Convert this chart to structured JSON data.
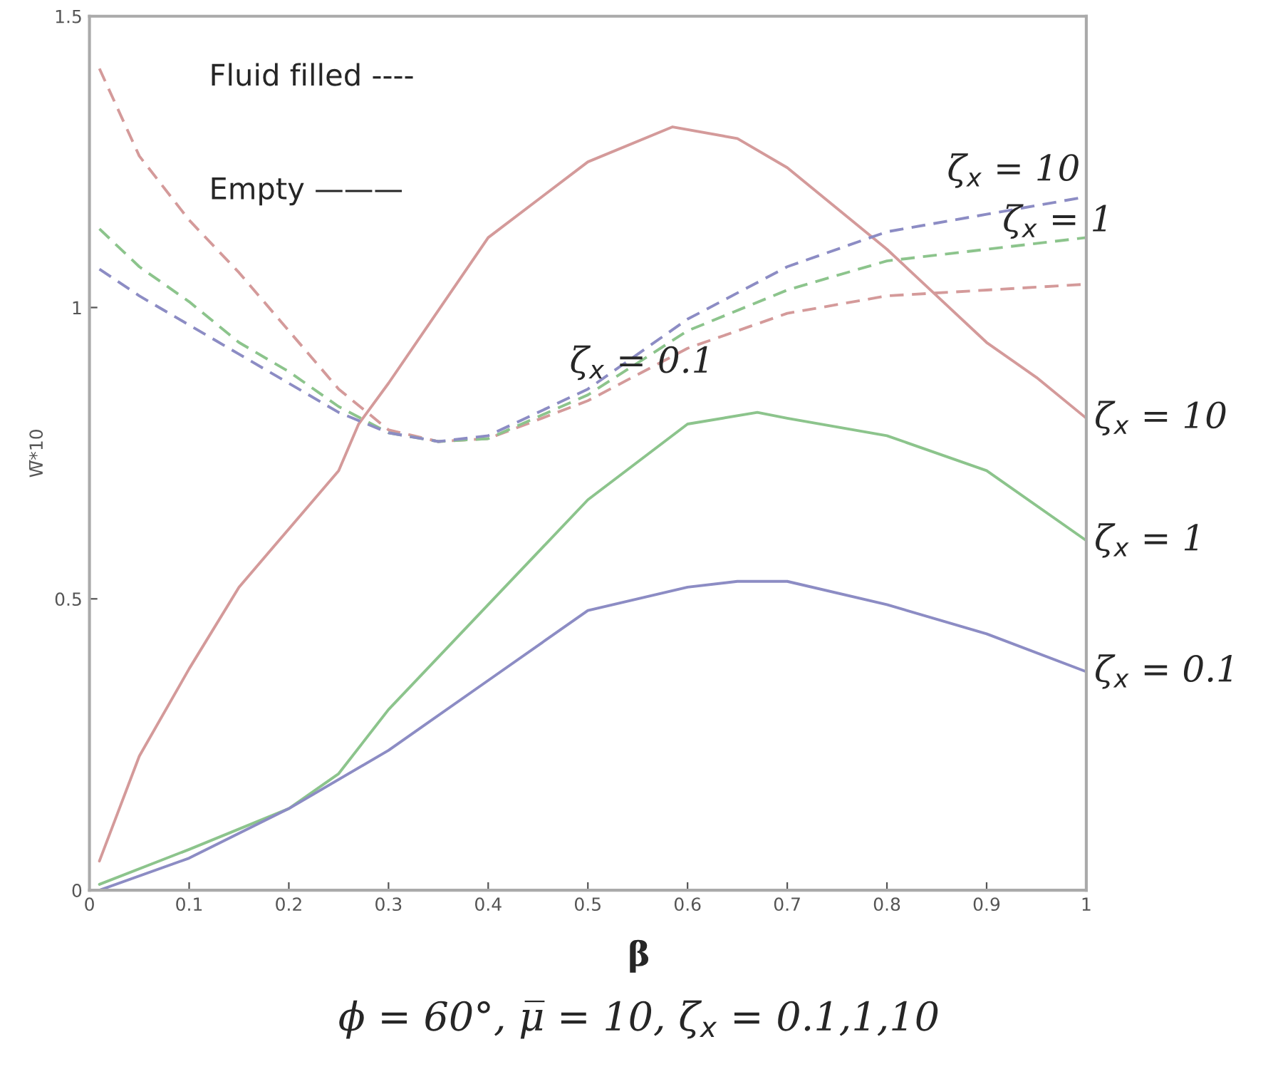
{
  "chart_data": {
    "type": "line",
    "xlabel": "β",
    "ylabel": "W̅*10",
    "x": [
      0.01,
      0.05,
      0.1,
      0.15,
      0.2,
      0.25,
      0.3,
      0.35,
      0.4,
      0.5,
      0.6,
      0.7,
      0.8,
      0.9,
      1.0
    ],
    "xlim": [
      0,
      1
    ],
    "ylim": [
      0,
      1.5
    ],
    "xticks": [
      0,
      0.1,
      0.2,
      0.3,
      0.4,
      0.5,
      0.6,
      0.7,
      0.8,
      0.9,
      1
    ],
    "yticks": [
      0,
      0.5,
      1,
      1.5
    ],
    "grid": false,
    "legend": false,
    "series": [
      {
        "color": "#d49a9a",
        "line_style": "solid",
        "x": [
          0.01,
          0.05,
          0.1,
          0.15,
          0.2,
          0.25,
          0.27,
          0.3,
          0.4,
          0.5,
          0.585,
          0.65,
          0.7,
          0.75,
          0.8,
          0.85,
          0.9,
          0.95,
          1.0
        ],
        "values": [
          0.05,
          0.23,
          0.38,
          0.52,
          0.62,
          0.72,
          0.8,
          0.87,
          1.12,
          1.25,
          1.31,
          1.29,
          1.24,
          1.17,
          1.1,
          1.02,
          0.94,
          0.88,
          0.81
        ]
      },
      {
        "color": "#8cc48c",
        "line_style": "solid",
        "x": [
          0.01,
          0.1,
          0.2,
          0.25,
          0.3,
          0.4,
          0.5,
          0.6,
          0.67,
          0.7,
          0.8,
          0.9,
          1.0
        ],
        "values": [
          0.01,
          0.07,
          0.14,
          0.2,
          0.31,
          0.49,
          0.67,
          0.8,
          0.82,
          0.81,
          0.78,
          0.72,
          0.6
        ]
      },
      {
        "color": "#8c8cc4",
        "line_style": "solid",
        "x": [
          0.01,
          0.1,
          0.2,
          0.3,
          0.4,
          0.5,
          0.6,
          0.65,
          0.7,
          0.8,
          0.9,
          1.0
        ],
        "values": [
          0.0,
          0.055,
          0.14,
          0.24,
          0.36,
          0.48,
          0.52,
          0.53,
          0.53,
          0.49,
          0.44,
          0.375
        ]
      },
      {
        "color": "#d49a9a",
        "line_style": "dashed",
        "values": [
          1.41,
          1.26,
          1.15,
          1.06,
          0.96,
          0.86,
          0.79,
          0.77,
          0.775,
          0.84,
          0.93,
          0.99,
          1.02,
          1.03,
          1.04
        ]
      },
      {
        "color": "#8cc48c",
        "line_style": "dashed",
        "values": [
          1.135,
          1.07,
          1.01,
          0.94,
          0.89,
          0.83,
          0.785,
          0.77,
          0.775,
          0.85,
          0.96,
          1.03,
          1.08,
          1.1,
          1.12
        ]
      },
      {
        "color": "#8c8cc4",
        "line_style": "dashed",
        "values": [
          1.066,
          1.02,
          0.97,
          0.92,
          0.87,
          0.82,
          0.785,
          0.77,
          0.78,
          0.86,
          0.98,
          1.07,
          1.13,
          1.16,
          1.19
        ]
      }
    ],
    "annotations": [
      "Fluid filled ----",
      "Empty ———",
      {
        "text": "ζ$_{x}$ = 10",
        "x": 1.0,
        "y": 0.81
      },
      {
        "text": "ζ$_{x}$ = 1",
        "x": 1.0,
        "y": 0.6
      },
      {
        "text": "ζ$_{x}$ = 0.1",
        "x": 1.0,
        "y": 0.375
      },
      {
        "text": "ζ$_{x}$ = 10",
        "x": 0.9,
        "y": 1.16
      },
      {
        "text": "ζ$_{x}$ = 1",
        "x": 0.9,
        "y": 1.1
      },
      {
        "text": "ζ$_{x}$ = 0.1",
        "x": 0.7,
        "y": 0.99
      },
      "ϕ = 60°, μ̅ = 10, ζ$_{x}$ = 0.1,1,10"
    ]
  }
}
